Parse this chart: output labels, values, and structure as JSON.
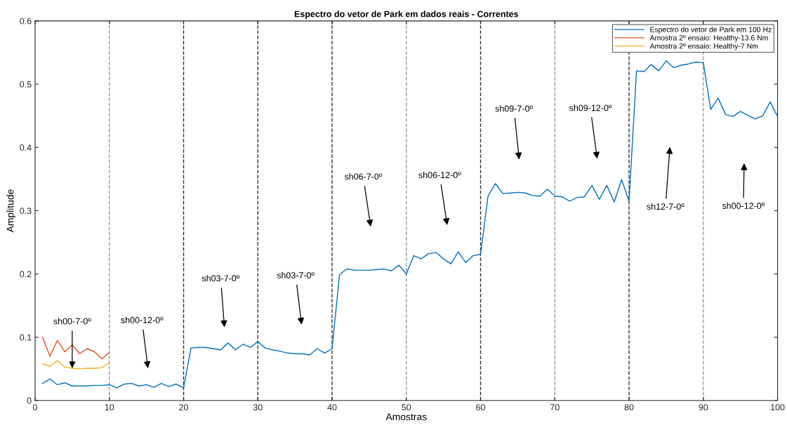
{
  "chart_data": {
    "type": "line",
    "title": "Espectro do vetor de Park em dados reais - Correntes",
    "xlabel": "Amostras",
    "ylabel": "Amplitude",
    "xlim": [
      0,
      100
    ],
    "xticks": [
      0,
      10,
      20,
      30,
      40,
      50,
      60,
      70,
      80,
      90,
      100
    ],
    "ylim": [
      0,
      0.6
    ],
    "yticks": [
      0,
      0.1,
      0.2,
      0.3,
      0.4,
      0.5,
      0.6
    ],
    "grid": false,
    "legend": "top right",
    "line_style": "solid",
    "series": [
      {
        "name": "Espectro do vetor de Park em 100 Hz",
        "color": "#0072bd",
        "x": [
          1,
          2,
          3,
          4,
          5,
          6,
          7,
          8,
          9,
          10,
          11,
          12,
          13,
          14,
          15,
          16,
          17,
          18,
          19,
          20,
          21,
          22,
          23,
          24,
          25,
          26,
          27,
          28,
          29,
          30,
          31,
          32,
          33,
          34,
          35,
          36,
          37,
          38,
          39,
          40,
          41,
          42,
          43,
          44,
          45,
          46,
          47,
          48,
          49,
          50,
          51,
          52,
          53,
          54,
          55,
          56,
          57,
          58,
          59,
          60,
          61,
          62,
          63,
          64,
          65,
          66,
          67,
          68,
          69,
          70,
          71,
          72,
          73,
          74,
          75,
          76,
          77,
          78,
          79,
          80,
          81,
          82,
          83,
          84,
          85,
          86,
          87,
          88,
          89,
          90,
          91,
          92,
          93,
          94,
          95,
          96,
          97,
          98,
          99,
          100
        ],
        "values": [
          0.027,
          0.034,
          0.025,
          0.028,
          0.023,
          0.023,
          0.023,
          0.024,
          0.024,
          0.025,
          0.02,
          0.026,
          0.027,
          0.023,
          0.025,
          0.021,
          0.027,
          0.022,
          0.026,
          0.02,
          0.083,
          0.084,
          0.084,
          0.082,
          0.08,
          0.091,
          0.08,
          0.089,
          0.084,
          0.093,
          0.083,
          0.08,
          0.078,
          0.075,
          0.074,
          0.074,
          0.072,
          0.082,
          0.075,
          0.082,
          0.199,
          0.208,
          0.206,
          0.206,
          0.206,
          0.207,
          0.208,
          0.205,
          0.214,
          0.2,
          0.229,
          0.224,
          0.232,
          0.234,
          0.224,
          0.216,
          0.235,
          0.218,
          0.229,
          0.231,
          0.323,
          0.343,
          0.327,
          0.328,
          0.329,
          0.328,
          0.324,
          0.323,
          0.334,
          0.323,
          0.322,
          0.315,
          0.321,
          0.322,
          0.34,
          0.318,
          0.34,
          0.314,
          0.349,
          0.315,
          0.521,
          0.52,
          0.531,
          0.521,
          0.537,
          0.526,
          0.53,
          0.532,
          0.535,
          0.534,
          0.46,
          0.478,
          0.452,
          0.449,
          0.457,
          0.451,
          0.445,
          0.45,
          0.472,
          0.449
        ]
      },
      {
        "name": "Amostra 2º ensaio: Healthy-13.6 Nm",
        "color": "#d95319",
        "x": [
          1,
          2,
          3,
          4,
          5,
          6,
          7,
          8,
          9,
          10
        ],
        "values": [
          0.1,
          0.07,
          0.095,
          0.077,
          0.088,
          0.074,
          0.082,
          0.077,
          0.066,
          0.076
        ]
      },
      {
        "name": "Amostra 2º ensaio: Healthy-7 Nm",
        "color": "#edb120",
        "x": [
          1,
          2,
          3,
          4,
          5,
          6,
          7,
          8,
          9,
          10
        ],
        "values": [
          0.058,
          0.054,
          0.063,
          0.053,
          0.051,
          0.05,
          0.051,
          0.051,
          0.052,
          0.06
        ]
      }
    ],
    "ref_lines": [
      {
        "axis": "x",
        "value": 10,
        "color": "#999999",
        "line_style": "dashed"
      },
      {
        "axis": "x",
        "value": 20,
        "color": "#333333",
        "line_style": "dashed"
      },
      {
        "axis": "x",
        "value": 30,
        "color": "#333333",
        "line_style": "dashed"
      },
      {
        "axis": "x",
        "value": 40,
        "color": "#333333",
        "line_style": "dashed"
      },
      {
        "axis": "x",
        "value": 50,
        "color": "#999999",
        "line_style": "dashed"
      },
      {
        "axis": "x",
        "value": 60,
        "color": "#333333",
        "line_style": "dashed"
      },
      {
        "axis": "x",
        "value": 70,
        "color": "#999999",
        "line_style": "dashed"
      },
      {
        "axis": "x",
        "value": 80,
        "color": "#333333",
        "line_style": "dashed"
      },
      {
        "axis": "x",
        "value": 90,
        "color": "#999999",
        "line_style": "dashed"
      }
    ],
    "annotations": [
      {
        "text": "sh00-7-0º",
        "x": 5,
        "y": 0.051
      },
      "sh00-12-0º",
      "sh03-7-0º",
      "sh03-7-0º",
      "sh06-7-0º",
      "sh06-12-0º",
      "sh09-7-0º",
      "sh09-12-0º",
      "sh12-7-0º",
      "sh00-12-0º"
    ]
  }
}
